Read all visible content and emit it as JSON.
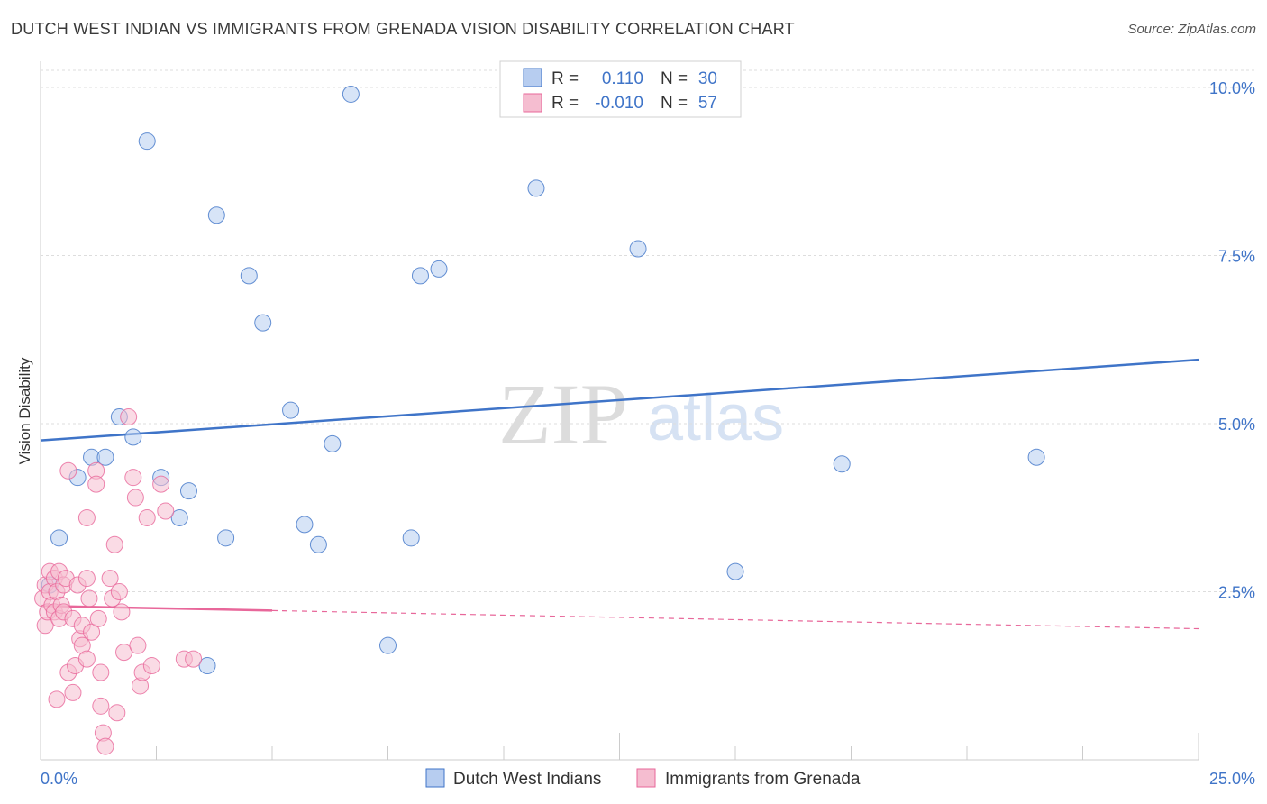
{
  "header": {
    "title": "DUTCH WEST INDIAN VS IMMIGRANTS FROM GRENADA VISION DISABILITY CORRELATION CHART",
    "source": "Source: ZipAtlas.com"
  },
  "watermark": {
    "zip": "ZIP",
    "atlas": "atlas"
  },
  "colors": {
    "blue": "#3f74c8",
    "blue_fill": "#b7cdf0",
    "pink": "#e8679a",
    "pink_fill": "#f5bdd0",
    "grid": "#dddddd"
  },
  "legend": {
    "blue": {
      "r_label": "R =",
      "r_value": "0.110",
      "n_label": "N =",
      "n_value": "30"
    },
    "pink": {
      "r_label": "R =",
      "r_value": "-0.010",
      "n_label": "N =",
      "n_value": "57"
    }
  },
  "chart_data": {
    "type": "scatter",
    "title": "DUTCH WEST INDIAN VS IMMIGRANTS FROM GRENADA VISION DISABILITY CORRELATION CHART",
    "xlabel": "",
    "ylabel": "Vision Disability",
    "xlim": [
      0,
      25
    ],
    "ylim": [
      0,
      10
    ],
    "x_tick_labels": [
      "0.0%",
      "25.0%"
    ],
    "y_ticks": [
      2.5,
      5.0,
      7.5,
      10.0
    ],
    "y_tick_labels": [
      "2.5%",
      "5.0%",
      "7.5%",
      "10.0%"
    ],
    "grid": true,
    "series": [
      {
        "name": "Dutch West Indians",
        "color": "#3f74c8",
        "points": [
          [
            0.4,
            3.3
          ],
          [
            0.8,
            4.2
          ],
          [
            1.1,
            4.5
          ],
          [
            1.4,
            4.5
          ],
          [
            1.7,
            5.1
          ],
          [
            2.0,
            4.8
          ],
          [
            2.3,
            9.2
          ],
          [
            2.6,
            4.2
          ],
          [
            3.0,
            3.6
          ],
          [
            3.2,
            4.0
          ],
          [
            3.6,
            1.4
          ],
          [
            3.8,
            8.1
          ],
          [
            4.0,
            3.3
          ],
          [
            4.5,
            7.2
          ],
          [
            4.8,
            6.5
          ],
          [
            5.4,
            5.2
          ],
          [
            5.7,
            3.5
          ],
          [
            6.0,
            3.2
          ],
          [
            6.3,
            4.7
          ],
          [
            6.7,
            9.9
          ],
          [
            7.5,
            1.7
          ],
          [
            8.0,
            3.3
          ],
          [
            8.2,
            7.2
          ],
          [
            8.6,
            7.3
          ],
          [
            10.7,
            8.5
          ],
          [
            12.9,
            7.6
          ],
          [
            15.0,
            2.8
          ],
          [
            17.3,
            4.4
          ],
          [
            21.5,
            4.5
          ],
          [
            0.2,
            2.6
          ]
        ],
        "trend": {
          "x": [
            0,
            25
          ],
          "y": [
            4.75,
            5.95
          ],
          "style": "solid"
        }
      },
      {
        "name": "Immigrants from Grenada",
        "color": "#e8679a",
        "points": [
          [
            0.05,
            2.4
          ],
          [
            0.1,
            2.0
          ],
          [
            0.1,
            2.6
          ],
          [
            0.15,
            2.2
          ],
          [
            0.2,
            2.8
          ],
          [
            0.2,
            2.5
          ],
          [
            0.25,
            2.3
          ],
          [
            0.3,
            2.2
          ],
          [
            0.3,
            2.7
          ],
          [
            0.35,
            2.5
          ],
          [
            0.4,
            2.1
          ],
          [
            0.4,
            2.8
          ],
          [
            0.45,
            2.3
          ],
          [
            0.5,
            2.6
          ],
          [
            0.5,
            2.2
          ],
          [
            0.55,
            2.7
          ],
          [
            0.6,
            1.3
          ],
          [
            0.6,
            4.3
          ],
          [
            0.7,
            2.1
          ],
          [
            0.7,
            1.0
          ],
          [
            0.75,
            1.4
          ],
          [
            0.8,
            2.6
          ],
          [
            0.85,
            1.8
          ],
          [
            0.9,
            1.7
          ],
          [
            0.9,
            2.0
          ],
          [
            1.0,
            2.7
          ],
          [
            1.0,
            1.5
          ],
          [
            1.0,
            3.6
          ],
          [
            1.05,
            2.4
          ],
          [
            1.1,
            1.9
          ],
          [
            1.2,
            4.3
          ],
          [
            1.2,
            4.1
          ],
          [
            1.25,
            2.1
          ],
          [
            1.3,
            1.3
          ],
          [
            1.3,
            0.8
          ],
          [
            1.35,
            0.4
          ],
          [
            1.4,
            0.2
          ],
          [
            1.5,
            2.7
          ],
          [
            1.55,
            2.4
          ],
          [
            1.6,
            3.2
          ],
          [
            1.65,
            0.7
          ],
          [
            1.7,
            2.5
          ],
          [
            1.75,
            2.2
          ],
          [
            1.8,
            1.6
          ],
          [
            1.9,
            5.1
          ],
          [
            2.0,
            4.2
          ],
          [
            2.05,
            3.9
          ],
          [
            2.1,
            1.7
          ],
          [
            2.15,
            1.1
          ],
          [
            2.2,
            1.3
          ],
          [
            2.3,
            3.6
          ],
          [
            2.4,
            1.4
          ],
          [
            2.6,
            4.1
          ],
          [
            2.7,
            3.7
          ],
          [
            3.1,
            1.5
          ],
          [
            3.3,
            1.5
          ],
          [
            0.35,
            0.9
          ]
        ],
        "trend": {
          "x": [
            0,
            5
          ],
          "y": [
            2.29,
            2.22
          ],
          "style": "solid"
        },
        "trend_extension": {
          "x": [
            5,
            25
          ],
          "y": [
            2.22,
            1.95
          ],
          "style": "dashed"
        }
      }
    ]
  },
  "bottom_legend": {
    "items": [
      {
        "label": "Dutch West Indians"
      },
      {
        "label": "Immigrants from Grenada"
      }
    ]
  }
}
